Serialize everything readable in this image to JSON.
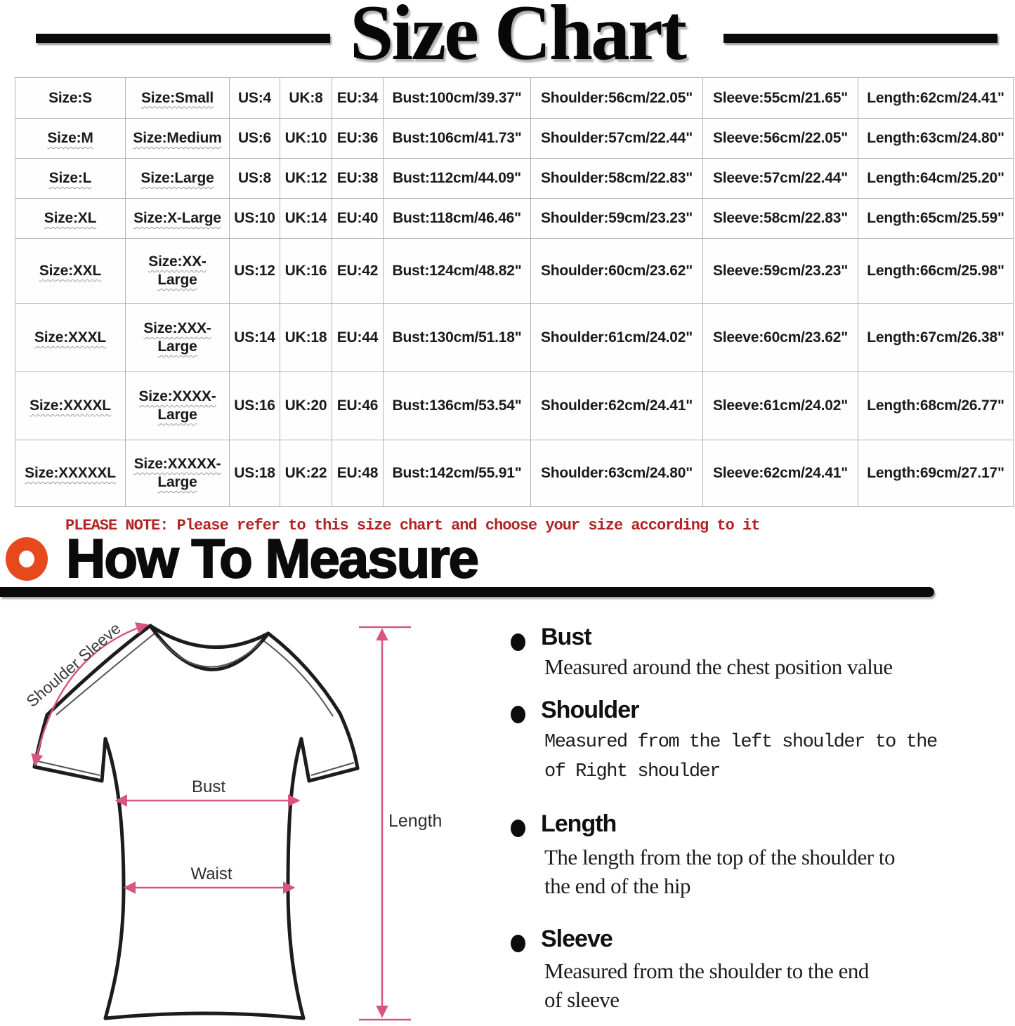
{
  "title": "Size Chart",
  "table": {
    "rows": [
      [
        "Size:S",
        "Size:Small",
        "US:4",
        "UK:8",
        "EU:34",
        "Bust:100cm/39.37\"",
        "Shoulder:56cm/22.05\"",
        "Sleeve:55cm/21.65\"",
        "Length:62cm/24.41\""
      ],
      [
        "Size:M",
        "Size:Medium",
        "US:6",
        "UK:10",
        "EU:36",
        "Bust:106cm/41.73\"",
        "Shoulder:57cm/22.44\"",
        "Sleeve:56cm/22.05\"",
        "Length:63cm/24.80\""
      ],
      [
        "Size:L",
        "Size:Large",
        "US:8",
        "UK:12",
        "EU:38",
        "Bust:112cm/44.09\"",
        "Shoulder:58cm/22.83\"",
        "Sleeve:57cm/22.44\"",
        "Length:64cm/25.20\""
      ],
      [
        "Size:XL",
        "Size:X-Large",
        "US:10",
        "UK:14",
        "EU:40",
        "Bust:118cm/46.46\"",
        "Shoulder:59cm/23.23\"",
        "Sleeve:58cm/22.83\"",
        "Length:65cm/25.59\""
      ],
      [
        "Size:XXL",
        "Size:XX-\nLarge",
        "US:12",
        "UK:16",
        "EU:42",
        "Bust:124cm/48.82\"",
        "Shoulder:60cm/23.62\"",
        "Sleeve:59cm/23.23\"",
        "Length:66cm/25.98\""
      ],
      [
        "Size:XXXL",
        "Size:XXX-\nLarge",
        "US:14",
        "UK:18",
        "EU:44",
        "Bust:130cm/51.18\"",
        "Shoulder:61cm/24.02\"",
        "Sleeve:60cm/23.62\"",
        "Length:67cm/26.38\""
      ],
      [
        "Size:XXXXL",
        "Size:XXXX-\nLarge",
        "US:16",
        "UK:20",
        "EU:46",
        "Bust:136cm/53.54\"",
        "Shoulder:62cm/24.41\"",
        "Sleeve:61cm/24.02\"",
        "Length:68cm/26.77\""
      ],
      [
        "Size:XXXXXL",
        "Size:XXXXX-\nLarge",
        "US:18",
        "UK:22",
        "EU:48",
        "Bust:142cm/55.91\"",
        "Shoulder:63cm/24.80\"",
        "Sleeve:62cm/24.41\"",
        "Length:69cm/27.17\""
      ]
    ]
  },
  "note": "PLEASE NOTE: Please refer to this size chart and choose your size according to it",
  "how_to_measure_title": "How To Measure",
  "diagram_labels": {
    "shoulder_sleeve": "Shoulder Sleeve",
    "bust": "Bust",
    "waist": "Waist",
    "length": "Length"
  },
  "measure_items": [
    {
      "heading": "Bust",
      "desc": "Measured around the chest position value"
    },
    {
      "heading": "Shoulder",
      "desc": "Measured from the left shoulder to the\nof Right shoulder"
    },
    {
      "heading": "Length",
      "desc": "The length from the top of the shoulder to\nthe end of the hip"
    },
    {
      "heading": "Sleeve",
      "desc": "Measured from the shoulder to the end\nof sleeve"
    }
  ],
  "colors": {
    "note_red": "#b32323",
    "accent_orange": "#e5491c",
    "arrow_pink": "#d85580",
    "bar_black": "#0a0a0a"
  }
}
